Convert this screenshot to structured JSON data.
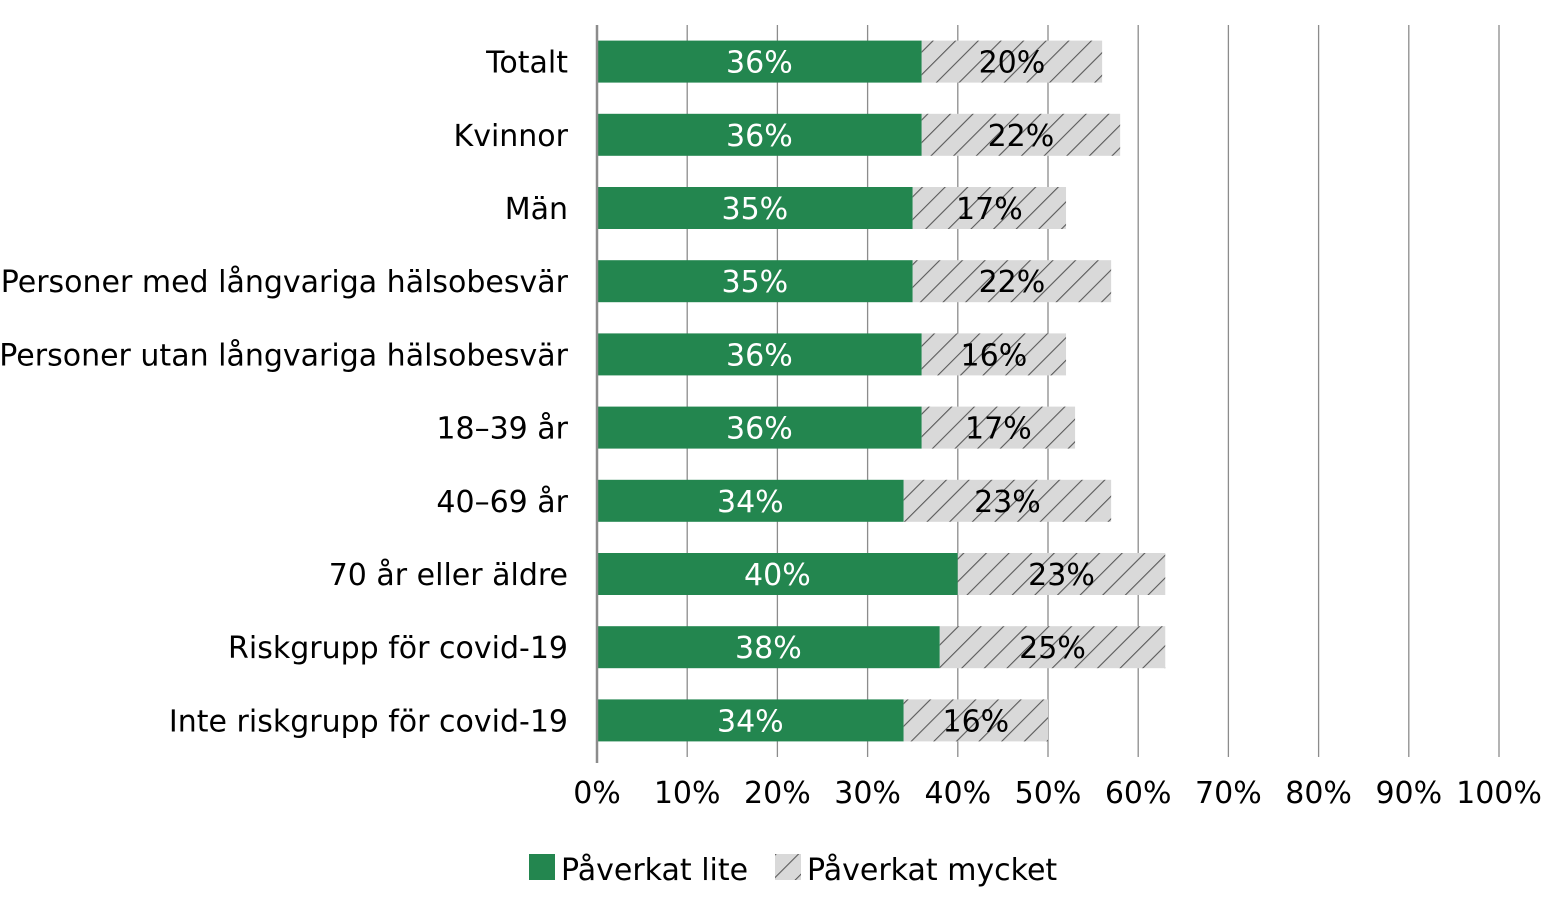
{
  "chart_data": {
    "type": "bar",
    "orientation": "horizontal",
    "stacked": true,
    "categories": [
      "Totalt",
      "Kvinnor",
      "Män",
      "Personer med långvariga hälsobesvär",
      "Personer utan långvariga hälsobesvär",
      "18–39 år",
      "40–69 år",
      "70 år eller äldre",
      "Riskgrupp för covid-19",
      "Inte riskgrupp för covid-19"
    ],
    "series": [
      {
        "name": "Påverkat lite",
        "values": [
          36,
          36,
          35,
          35,
          36,
          36,
          34,
          40,
          38,
          34
        ],
        "labels": [
          "36%",
          "36%",
          "35%",
          "35%",
          "36%",
          "36%",
          "34%",
          "40%",
          "38%",
          "34%"
        ],
        "color": "#23864f"
      },
      {
        "name": "Påverkat mycket",
        "values": [
          20,
          22,
          17,
          22,
          16,
          17,
          23,
          23,
          25,
          16
        ],
        "labels": [
          "20%",
          "22%",
          "17%",
          "22%",
          "16%",
          "17%",
          "23%",
          "23%",
          "25%",
          "16%"
        ],
        "color": "#d9d9d9",
        "pattern": "diagonal-hatch"
      }
    ],
    "xlim": [
      0,
      100
    ],
    "xticks": [
      "0%",
      "10%",
      "20%",
      "30%",
      "40%",
      "50%",
      "60%",
      "70%",
      "80%",
      "90%",
      "100%"
    ],
    "grid": "vertical",
    "legend": "bottom"
  }
}
